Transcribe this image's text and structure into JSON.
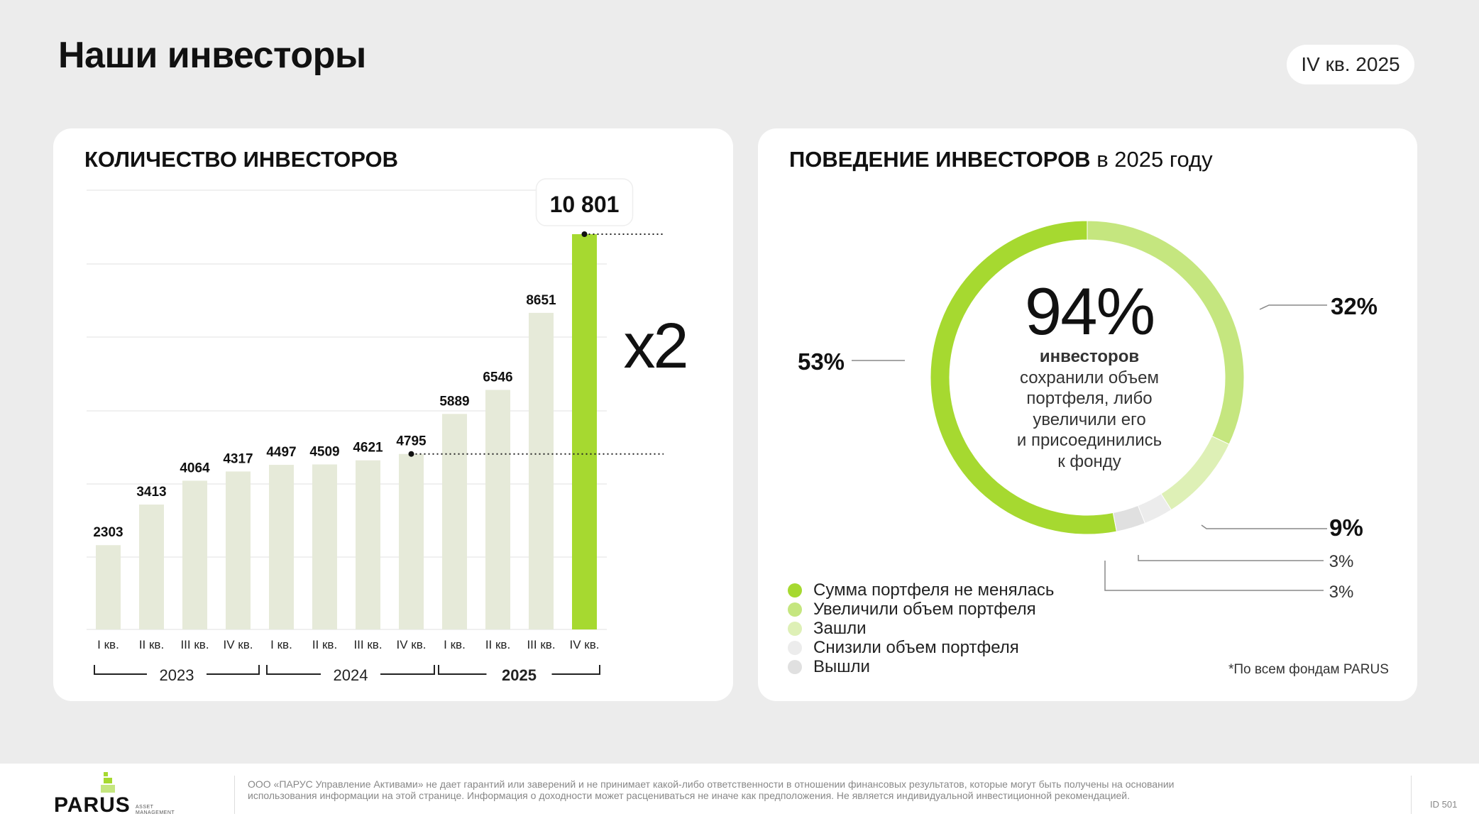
{
  "header": {
    "title": "Наши инвесторы",
    "period": "IV кв. 2025"
  },
  "left": {
    "title": "КОЛИЧЕСТВО ИНВЕСТОРОВ",
    "multiplier": "x2"
  },
  "chart_data": [
    {
      "type": "bar",
      "title": "КОЛИЧЕСТВО ИНВЕСТОРОВ",
      "categories": [
        "I кв.",
        "II кв.",
        "III кв.",
        "IV кв.",
        "I кв.",
        "II кв.",
        "III кв.",
        "IV кв.",
        "I кв.",
        "II кв.",
        "III кв.",
        "IV кв."
      ],
      "values": [
        2303,
        3413,
        4064,
        4317,
        4497,
        4509,
        4621,
        4795,
        5889,
        6546,
        8651,
        10801
      ],
      "value_labels": [
        "2303",
        "3413",
        "4064",
        "4317",
        "4497",
        "4509",
        "4621",
        "4795",
        "5889",
        "6546",
        "8651",
        "10 801"
      ],
      "groups": [
        {
          "label": "2023",
          "bold": false
        },
        {
          "label": "2024",
          "bold": false
        },
        {
          "label": "2025",
          "bold": true
        }
      ],
      "highlight_index": 11,
      "reference_index": 7,
      "ylim": [
        0,
        12000
      ],
      "grid": true,
      "colors": {
        "bar": "#e6ead9",
        "highlight": "#a6d930"
      }
    },
    {
      "type": "pie",
      "title": "ПОВЕДЕНИЕ ИНВЕСТОРОВ в 2025 году",
      "labels": [
        "Сумма портфеля не менялась",
        "Увеличили объем портфеля",
        "Зашли",
        "Снизили объем портфеля",
        "Вышли"
      ],
      "values": [
        53,
        32,
        9,
        3,
        3
      ],
      "value_labels": [
        "53%",
        "32%",
        "9%",
        "3%",
        "3%"
      ],
      "colors": [
        "#a6d930",
        "#c5e67f",
        "#def0b6",
        "#ececec",
        "#e0e0e0"
      ],
      "donut": true
    }
  ],
  "right": {
    "title_bold": "ПОВЕДЕНИЕ ИНВЕСТОРОВ",
    "title_rest": " в 2025 году",
    "center_value": "94%",
    "center_bold": "инвесторов",
    "center_lines": [
      "сохранили объем",
      "портфеля, либо",
      "увеличили его",
      "и присоединились",
      "к фонду"
    ],
    "footnote": "*По всем фондам PARUS"
  },
  "footer": {
    "logo": "PARUS",
    "logo_sub": "ASSET MANAGEMENT",
    "disclaimer": "ООО «ПАРУС Управление Активами» не дает гарантий или заверений и не принимает какой-либо ответственности в отношении финансовых результатов, которые могут быть получены на основании использования информации на этой странице. Информация о доходности может расцениваться не иначе как предположения. Не является индивидуальной инвестиционной рекомендацией.",
    "page_id": "ID 501"
  }
}
